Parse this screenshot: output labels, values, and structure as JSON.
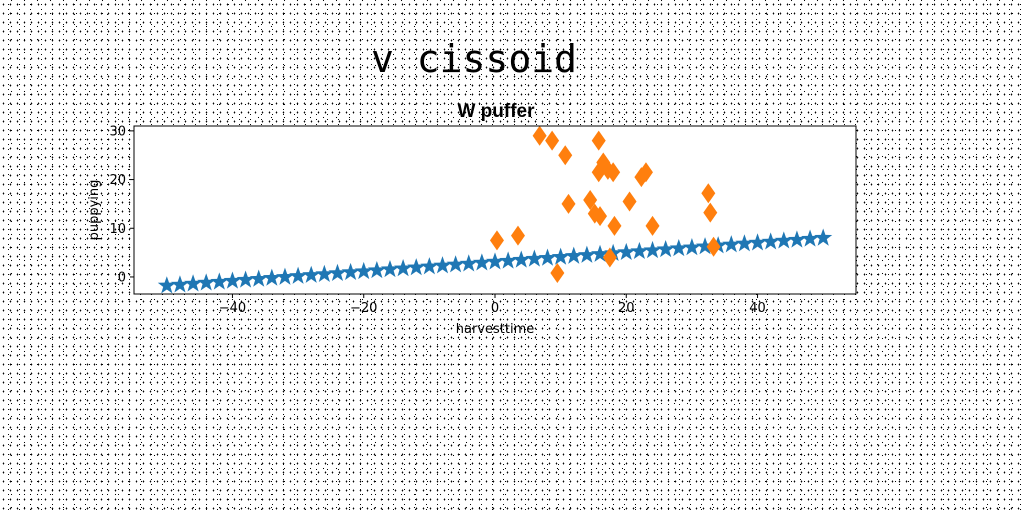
{
  "figure": {
    "suptitle": "v cissoid"
  },
  "chart_data": {
    "type": "scatter",
    "title": "W puffer",
    "xlabel": "harvesttime",
    "ylabel": "puppying",
    "xlim": [
      -55,
      55
    ],
    "ylim": [
      -3.5,
      31
    ],
    "xticks": [
      -40,
      -20,
      0,
      20,
      40
    ],
    "yticks": [
      0,
      10,
      20,
      30
    ],
    "grid": false,
    "series": [
      {
        "marker": "star",
        "color": "#1f77b4",
        "line": {
          "x0": -50,
          "x1": 50,
          "y0": -1.8,
          "y1": 8,
          "count": 51
        }
      },
      {
        "marker": "diamond",
        "color": "#ff7f0e",
        "points": [
          {
            "x": 0.3,
            "y": 7.5
          },
          {
            "x": 3.5,
            "y": 8.5
          },
          {
            "x": 6.8,
            "y": 29
          },
          {
            "x": 8.7,
            "y": 28
          },
          {
            "x": 10.7,
            "y": 25
          },
          {
            "x": 11.2,
            "y": 15
          },
          {
            "x": 9.5,
            "y": 0.8
          },
          {
            "x": 14.5,
            "y": 15.8
          },
          {
            "x": 15.2,
            "y": 13
          },
          {
            "x": 15.8,
            "y": 28
          },
          {
            "x": 16.0,
            "y": 12.5
          },
          {
            "x": 15.8,
            "y": 21.5
          },
          {
            "x": 16.5,
            "y": 23.5
          },
          {
            "x": 17.2,
            "y": 22
          },
          {
            "x": 17.5,
            "y": 4
          },
          {
            "x": 18.0,
            "y": 21.5
          },
          {
            "x": 18.2,
            "y": 10.5
          },
          {
            "x": 20.5,
            "y": 15.5
          },
          {
            "x": 22.3,
            "y": 20.5
          },
          {
            "x": 23.0,
            "y": 21.5
          },
          {
            "x": 24.0,
            "y": 10.5
          },
          {
            "x": 32.5,
            "y": 17.2
          },
          {
            "x": 32.8,
            "y": 13.2
          },
          {
            "x": 33.3,
            "y": 6.2
          }
        ]
      }
    ]
  }
}
